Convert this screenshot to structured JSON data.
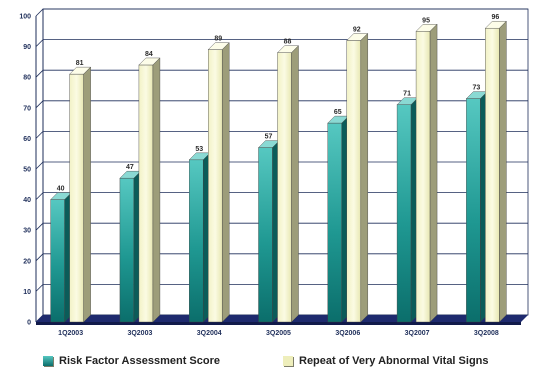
{
  "chart_data": {
    "type": "bar",
    "categories": [
      "1Q2003",
      "3Q2003",
      "3Q2004",
      "3Q2005",
      "3Q2006",
      "3Q2007",
      "3Q2008"
    ],
    "series": [
      {
        "name": "Risk Factor Assessment Score",
        "values": [
          40,
          47,
          53,
          57,
          65,
          71,
          73
        ],
        "color": "#1f8f8c"
      },
      {
        "name": "Repeat of Very Abnormal Vital Signs",
        "values": [
          81,
          84,
          89,
          88,
          92,
          95,
          96
        ],
        "color": "#eeeebb"
      }
    ],
    "yticks": [
      0,
      10,
      20,
      30,
      40,
      50,
      60,
      70,
      80,
      90,
      100
    ],
    "ylim": [
      0,
      100
    ],
    "grid": true,
    "legend_position": "bottom",
    "floor_color": "#1e2a6e",
    "grid_color": "#1e2e5a"
  }
}
